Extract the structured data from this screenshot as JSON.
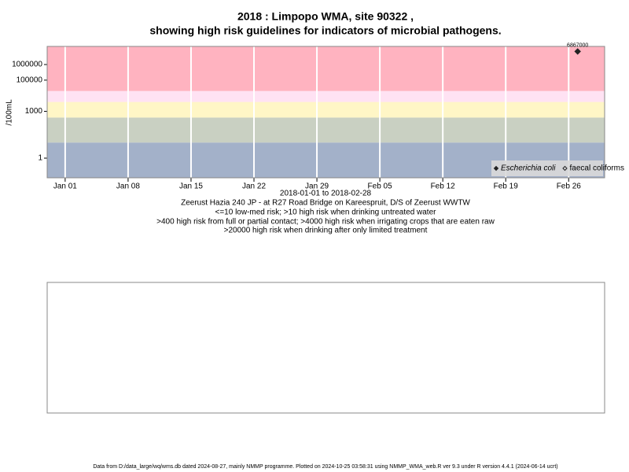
{
  "chart_data": {
    "type": "scatter",
    "title": [
      "2018 : Limpopo WMA, site 90322 ,",
      "showing high risk guidelines for indicators of microbial pathogens."
    ],
    "y_label": "/100mL",
    "x_label": [
      "2018-01-01 to 2018-02-28",
      "Zeerust Hazia 240 JP - at R27 Road Bridge on Kareespruit, D/S of Zeerust WWTW",
      "<=10 low-med risk; >10 high risk when drinking untreated water",
      ">400 high risk from full or partial contact; >4000 high risk when irrigating crops that are eaten raw",
      ">20000 high risk when drinking after only limited treatment"
    ],
    "x": [
      "2018-02-27"
    ],
    "series": [
      {
        "name": "Escherichia coli",
        "color": "#222222",
        "marker": "filled-diamond",
        "values": [
          6867000
        ]
      },
      {
        "name": "faecal coliforms",
        "color": "#222222",
        "marker": "open-diamond",
        "values": [
          null
        ]
      }
    ],
    "xlim": [
      "2017-12-30",
      "2018-03-02"
    ],
    "xticks": [
      {
        "value": "2018-01-01",
        "label": "Jan 01"
      },
      {
        "value": "2018-01-08",
        "label": "Jan 08"
      },
      {
        "value": "2018-01-15",
        "label": "Jan 15"
      },
      {
        "value": "2018-01-22",
        "label": "Jan 22"
      },
      {
        "value": "2018-01-29",
        "label": "Jan 29"
      },
      {
        "value": "2018-02-05",
        "label": "Feb 05"
      },
      {
        "value": "2018-02-12",
        "label": "Feb 12"
      },
      {
        "value": "2018-02-19",
        "label": "Feb 19"
      },
      {
        "value": "2018-02-26",
        "label": "Feb 26"
      }
    ],
    "ylim": [
      0.055,
      14500000
    ],
    "yticks": [
      1,
      1000,
      100000,
      1000000
    ],
    "log_y": true,
    "grid": true,
    "legend": "bottom-right",
    "risk_thresholds": [
      10,
      400,
      4000,
      20000
    ],
    "risk_colors": [
      "#a3b1c9",
      "#c9d0c2",
      "#fff6c6",
      "#ffe2f3",
      "#ffb3c0"
    ]
  },
  "footer": "Data from D:/data_large/wq/wms.db dated 2024-08-27, mainly NMMP programme. Plotted on 2024-10-25 03:58:31 using NMMP_WMA_web.R ver 9.3 under R version 4.4.1 (2024-06-14 ucrt)"
}
